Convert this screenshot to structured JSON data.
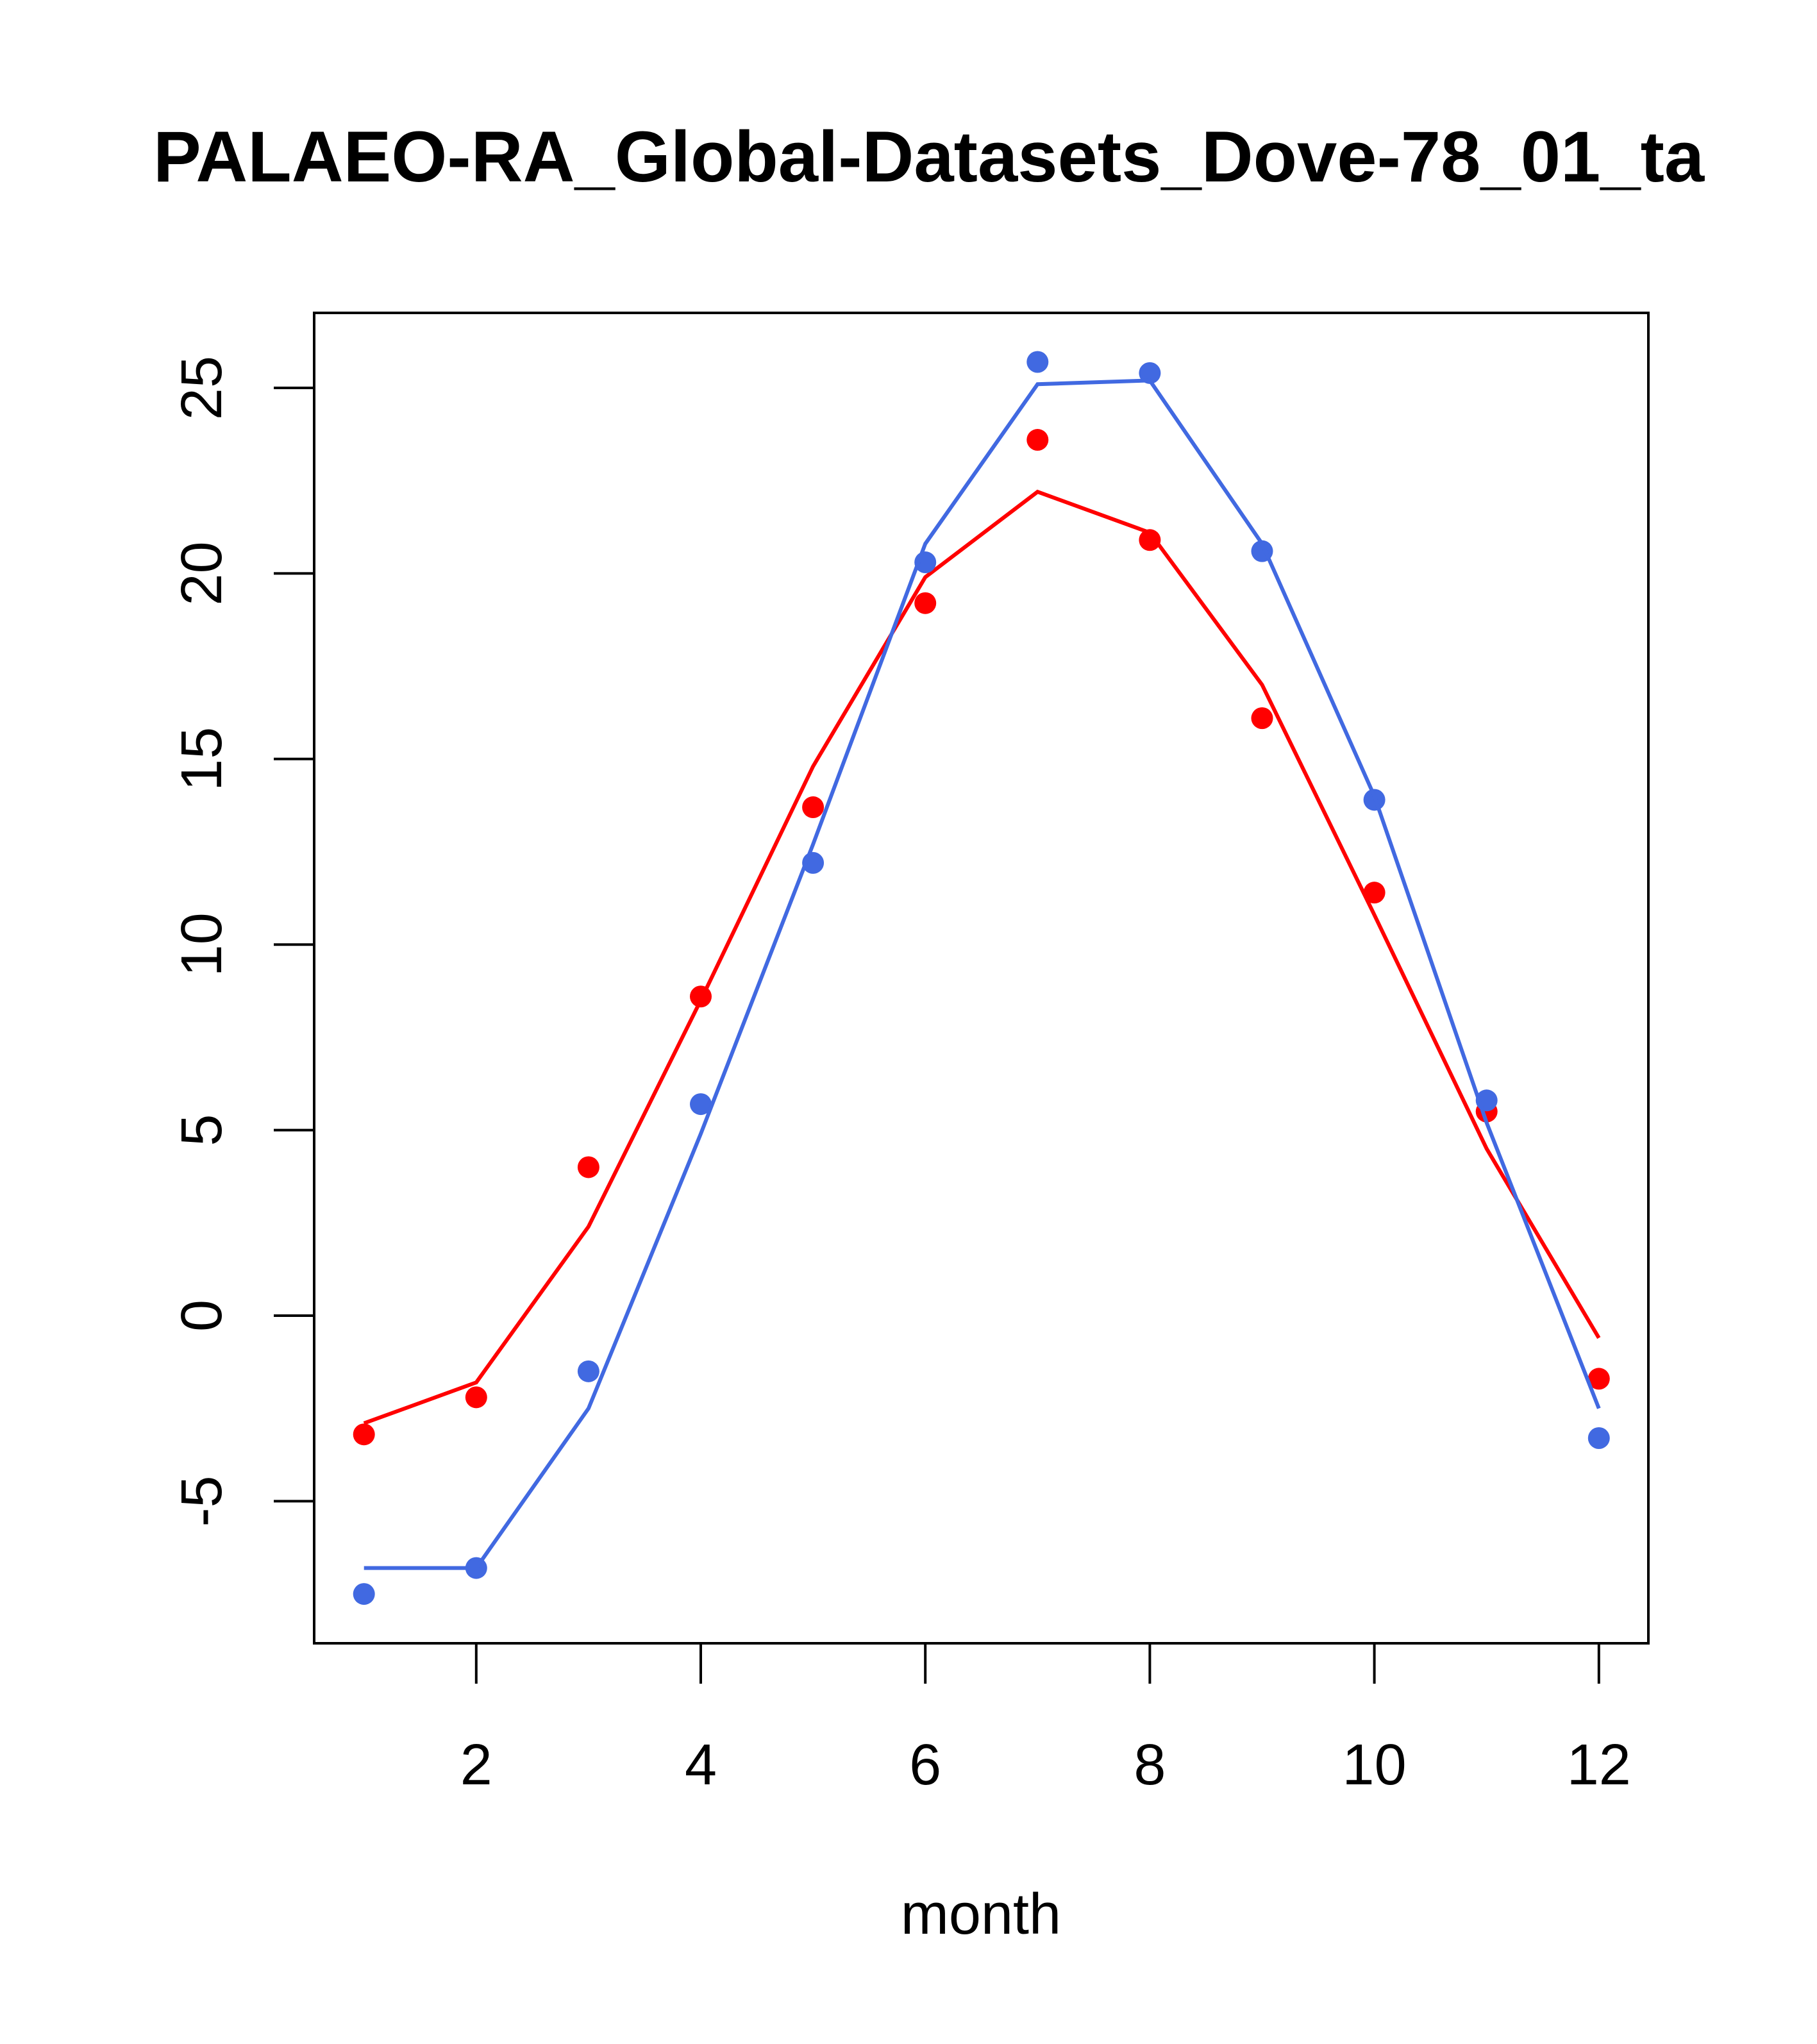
{
  "chart_data": {
    "type": "line",
    "title": "PALAEO-RA_Global-Datasets_Dove-78_01_ta",
    "xlabel": "month",
    "ylabel": "",
    "xlim": [
      0.57,
      12.45
    ],
    "ylim": [
      -8.8,
      27.0
    ],
    "xticks": [
      2,
      4,
      6,
      8,
      10,
      12
    ],
    "yticks": [
      -5,
      0,
      5,
      10,
      15,
      20,
      25
    ],
    "x": [
      1,
      2,
      3,
      4,
      5,
      6,
      7,
      8,
      9,
      10,
      11,
      12
    ],
    "series": [
      {
        "name": "red points",
        "kind": "points",
        "color": "#ff0000",
        "values": [
          -3.2,
          -2.2,
          4.0,
          8.6,
          13.7,
          19.2,
          23.6,
          20.9,
          16.1,
          11.4,
          5.5,
          -1.7
        ]
      },
      {
        "name": "red line",
        "kind": "line",
        "color": "#ff0000",
        "values": [
          -2.9,
          -1.8,
          2.4,
          8.5,
          14.8,
          19.9,
          22.2,
          21.1,
          17.0,
          10.8,
          4.5,
          -0.6
        ]
      },
      {
        "name": "blue points",
        "kind": "points",
        "color": "#4169e1",
        "values": [
          -7.5,
          -6.8,
          -1.5,
          5.7,
          12.2,
          20.3,
          25.7,
          25.4,
          20.6,
          13.9,
          5.8,
          -3.3
        ]
      },
      {
        "name": "blue line",
        "kind": "line",
        "color": "#4169e1",
        "values": [
          -6.8,
          -6.8,
          -2.5,
          4.9,
          12.7,
          20.8,
          25.1,
          25.2,
          20.8,
          14.0,
          5.2,
          -2.5
        ]
      }
    ]
  }
}
